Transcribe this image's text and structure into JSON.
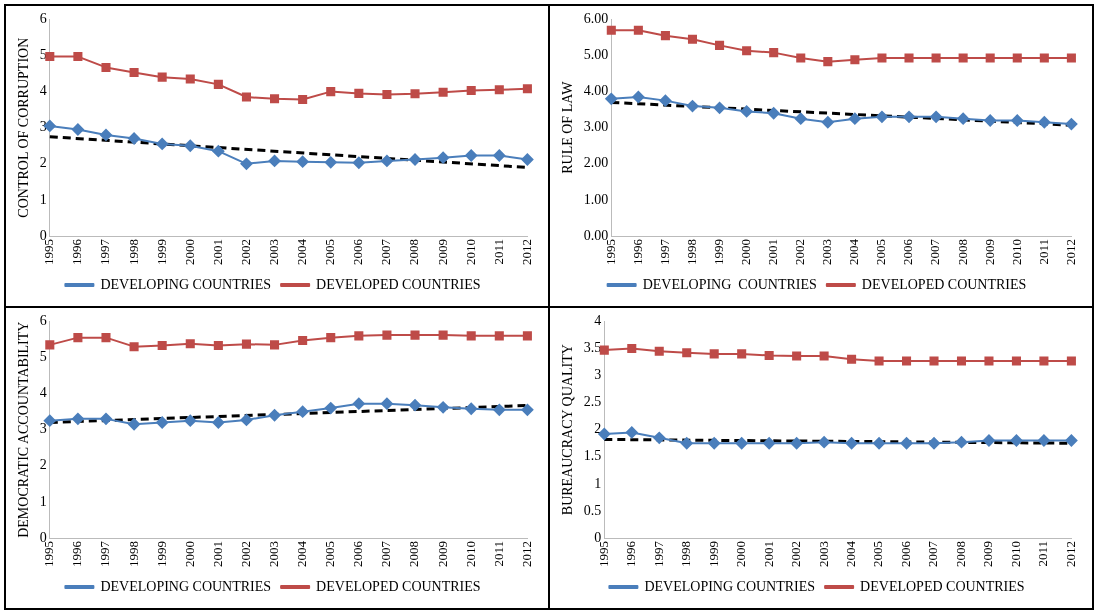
{
  "chart_data": [
    {
      "type": "line",
      "ylabel": "CONTROL OF CORRUPTION",
      "categories": [
        "1995",
        "1996",
        "1997",
        "1998",
        "1999",
        "2000",
        "2001",
        "2002",
        "2003",
        "2004",
        "2005",
        "2006",
        "2007",
        "2008",
        "2009",
        "2010",
        "2011",
        "2012"
      ],
      "ylim": [
        0,
        6
      ],
      "yticks": [
        0,
        1,
        2,
        3,
        4,
        5,
        6
      ],
      "grid": false,
      "legend": "bottom",
      "series": [
        {
          "name": "DEVELOPING COUNTRIES",
          "color": "#4a7ebb",
          "marker": "diamond",
          "values": [
            3.05,
            2.95,
            2.8,
            2.7,
            2.55,
            2.5,
            2.35,
            2.0,
            2.08,
            2.06,
            2.04,
            2.03,
            2.08,
            2.12,
            2.17,
            2.23,
            2.23,
            2.12
          ]
        },
        {
          "name": "DEVELOPED COUNTRIES",
          "color": "#be4b48",
          "marker": "square",
          "values": [
            4.97,
            4.97,
            4.67,
            4.53,
            4.4,
            4.35,
            4.2,
            3.85,
            3.8,
            3.78,
            4.0,
            3.95,
            3.92,
            3.94,
            3.98,
            4.03,
            4.05,
            4.08
          ]
        },
        {
          "type": "line",
          "color": "#000000",
          "marker": "none",
          "line_style": "dashed",
          "values": [
            2.75,
            null,
            null,
            null,
            null,
            null,
            null,
            null,
            null,
            null,
            null,
            null,
            null,
            null,
            null,
            null,
            null,
            1.9
          ]
        }
      ]
    },
    {
      "type": "line",
      "ylabel": "RULE OF LAW",
      "categories": [
        "1995",
        "1996",
        "1997",
        "1998",
        "1999",
        "2000",
        "2001",
        "2002",
        "2003",
        "2004",
        "2005",
        "2006",
        "2007",
        "2008",
        "2009",
        "2010",
        "2011",
        "2012"
      ],
      "ylim": [
        0,
        6
      ],
      "yticks": [
        {
          "value": 0,
          "label": "0.00"
        },
        {
          "value": 1,
          "label": "1.00"
        },
        {
          "value": 2,
          "label": "2.00"
        },
        {
          "value": 3,
          "label": "3.00"
        },
        {
          "value": 4,
          "label": "4.00"
        },
        {
          "value": 5,
          "label": "5.00"
        },
        {
          "value": 6,
          "label": "6.00"
        }
      ],
      "grid": false,
      "legend": "bottom",
      "series": [
        {
          "name": "DEVELOPING  COUNTRIES",
          "color": "#4a7ebb",
          "marker": "diamond",
          "values": [
            3.8,
            3.85,
            3.75,
            3.6,
            3.55,
            3.45,
            3.4,
            3.25,
            3.15,
            3.25,
            3.3,
            3.3,
            3.3,
            3.25,
            3.2,
            3.2,
            3.15,
            3.1
          ]
        },
        {
          "name": "DEVELOPED COUNTRIES",
          "color": "#be4b48",
          "marker": "square",
          "values": [
            5.7,
            5.7,
            5.55,
            5.45,
            5.28,
            5.13,
            5.08,
            4.93,
            4.83,
            4.88,
            4.93,
            4.93,
            4.93,
            4.93,
            4.93,
            4.93,
            4.93,
            4.93
          ]
        },
        {
          "type": "line",
          "color": "#000000",
          "marker": "none",
          "line_style": "dashed",
          "values": [
            3.7,
            null,
            null,
            null,
            null,
            null,
            null,
            null,
            null,
            null,
            null,
            null,
            null,
            null,
            null,
            null,
            null,
            3.07
          ]
        }
      ]
    },
    {
      "type": "line",
      "ylabel": "DEMOCRATIC ACCOUNTABILITY",
      "categories": [
        "1995",
        "1996",
        "1997",
        "1998",
        "1999",
        "2000",
        "2001",
        "2002",
        "2003",
        "2004",
        "2005",
        "2006",
        "2007",
        "2008",
        "2009",
        "2010",
        "2011",
        "2012"
      ],
      "ylim": [
        0,
        6
      ],
      "yticks": [
        0,
        1,
        2,
        3,
        4,
        5,
        6
      ],
      "grid": false,
      "legend": "bottom",
      "series": [
        {
          "name": "DEVELOPING COUNTRIES",
          "color": "#4a7ebb",
          "marker": "diamond",
          "values": [
            3.25,
            3.3,
            3.3,
            3.15,
            3.2,
            3.25,
            3.2,
            3.27,
            3.4,
            3.5,
            3.6,
            3.72,
            3.72,
            3.68,
            3.62,
            3.58,
            3.55,
            3.55
          ]
        },
        {
          "name": "DEVELOPED COUNTRIES",
          "color": "#be4b48",
          "marker": "square",
          "values": [
            5.35,
            5.55,
            5.55,
            5.3,
            5.33,
            5.38,
            5.33,
            5.37,
            5.35,
            5.47,
            5.55,
            5.6,
            5.62,
            5.62,
            5.62,
            5.6,
            5.6,
            5.6
          ]
        },
        {
          "type": "line",
          "color": "#000000",
          "marker": "none",
          "line_style": "dashed",
          "values": [
            3.2,
            null,
            null,
            null,
            null,
            null,
            null,
            null,
            null,
            null,
            null,
            null,
            null,
            null,
            null,
            null,
            null,
            3.67
          ]
        }
      ]
    },
    {
      "type": "line",
      "ylabel": "BUREAUCRACY QUALITY",
      "categories": [
        "1995",
        "1996",
        "1997",
        "1998",
        "1999",
        "2000",
        "2001",
        "2002",
        "2003",
        "2004",
        "2005",
        "2006",
        "2007",
        "2008",
        "2009",
        "2010",
        "2011",
        "2012"
      ],
      "ylim": [
        0,
        4
      ],
      "yticks": [
        0,
        0.5,
        1,
        1.5,
        2,
        2.5,
        3,
        3.5,
        4
      ],
      "grid": false,
      "legend": "bottom",
      "series": [
        {
          "name": "DEVELOPING COUNTRIES",
          "color": "#4a7ebb",
          "marker": "diamond",
          "values": [
            1.92,
            1.95,
            1.85,
            1.75,
            1.75,
            1.75,
            1.75,
            1.75,
            1.77,
            1.75,
            1.75,
            1.75,
            1.75,
            1.77,
            1.8,
            1.8,
            1.8,
            1.8
          ]
        },
        {
          "name": "DEVELOPED COUNTRIES",
          "color": "#be4b48",
          "marker": "square",
          "values": [
            3.47,
            3.5,
            3.45,
            3.42,
            3.4,
            3.4,
            3.37,
            3.36,
            3.36,
            3.3,
            3.27,
            3.27,
            3.27,
            3.27,
            3.27,
            3.27,
            3.27,
            3.27
          ]
        },
        {
          "type": "line",
          "color": "#000000",
          "marker": "none",
          "line_style": "dashed",
          "values": [
            1.82,
            null,
            null,
            null,
            null,
            null,
            null,
            null,
            null,
            null,
            null,
            null,
            null,
            null,
            null,
            null,
            null,
            1.75
          ]
        }
      ]
    }
  ]
}
